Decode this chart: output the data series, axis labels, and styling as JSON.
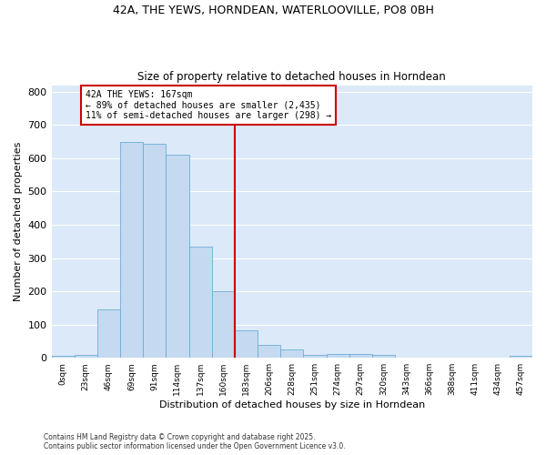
{
  "title_line1": "42A, THE YEWS, HORNDEAN, WATERLOOVILLE, PO8 0BH",
  "title_line2": "Size of property relative to detached houses in Horndean",
  "xlabel": "Distribution of detached houses by size in Horndean",
  "ylabel": "Number of detached properties",
  "bar_color": "#c5d9f0",
  "bar_edge_color": "#6baed6",
  "bg_color": "#dce9f8",
  "grid_color": "#ffffff",
  "annotation_line_color": "#cc0000",
  "annotation_box_color": "#cc0000",
  "annotation_text": "42A THE YEWS: 167sqm\n← 89% of detached houses are smaller (2,435)\n11% of semi-detached houses are larger (298) →",
  "footnote_line1": "Contains HM Land Registry data © Crown copyright and database right 2025.",
  "footnote_line2": "Contains public sector information licensed under the Open Government Licence v3.0.",
  "bin_labels": [
    "0sqm",
    "23sqm",
    "46sqm",
    "69sqm",
    "91sqm",
    "114sqm",
    "137sqm",
    "160sqm",
    "183sqm",
    "206sqm",
    "228sqm",
    "251sqm",
    "274sqm",
    "297sqm",
    "320sqm",
    "343sqm",
    "366sqm",
    "388sqm",
    "411sqm",
    "434sqm",
    "457sqm"
  ],
  "bar_heights": [
    5,
    8,
    145,
    648,
    645,
    612,
    335,
    200,
    83,
    40,
    25,
    10,
    12,
    12,
    8,
    0,
    0,
    0,
    0,
    0,
    5
  ],
  "property_line_x": 7.5,
  "ylim": [
    0,
    820
  ],
  "yticks": [
    0,
    100,
    200,
    300,
    400,
    500,
    600,
    700,
    800
  ]
}
